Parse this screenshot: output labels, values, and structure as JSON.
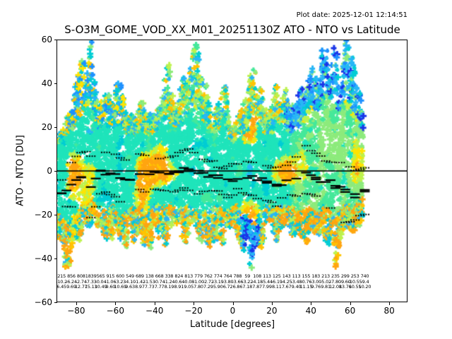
{
  "header": {
    "title": "S-O3M_GOME_VOD_XX_M01_20251130Z ATO - NTO vs Latitude",
    "plot_date": "Plot date: 2025-12-01 12:14:51"
  },
  "chart_data": {
    "type": "scatter",
    "marker": "+",
    "title": "S-O3M_GOME_VOD_XX_M01_20251130Z ATO - NTO vs Latitude",
    "xlabel": "Latitude [degrees]",
    "ylabel": "ATO - NTO [DU]",
    "xlim": [
      -90,
      89.5
    ],
    "ylim": [
      -60,
      60
    ],
    "grid": false,
    "zero_line_y": 0,
    "xticks": [
      {
        "value": -80,
        "label": "−80"
      },
      {
        "value": -60,
        "label": "−60"
      },
      {
        "value": -40,
        "label": "−40"
      },
      {
        "value": -20,
        "label": "−20"
      },
      {
        "value": 0,
        "label": "0"
      },
      {
        "value": 20,
        "label": "20"
      },
      {
        "value": 40,
        "label": "40"
      },
      {
        "value": 60,
        "label": "60"
      },
      {
        "value": 80,
        "label": "80"
      }
    ],
    "yticks": [
      {
        "value": 60,
        "label": "60"
      },
      {
        "value": 40,
        "label": "40"
      },
      {
        "value": 20,
        "label": "20"
      },
      {
        "value": 0,
        "label": "0"
      },
      {
        "value": -20,
        "label": "−20"
      },
      {
        "value": -40,
        "label": "−40"
      },
      {
        "value": -60,
        "label": "−60"
      }
    ],
    "lat_range_of_data": [
      -89.5,
      66.5
    ],
    "palette": [
      "#1a35e8",
      "#1e90ff",
      "#29b6f6",
      "#00cdd4",
      "#1fe4bb",
      "#45e89a",
      "#8deb7c",
      "#bdf24d",
      "#ffe400",
      "#ffc400",
      "#ffa510"
    ],
    "overlay_color": "#000000",
    "envelope": {
      "lat": [
        -89.5,
        -86,
        -83,
        -80,
        -77,
        -73,
        -71,
        -68,
        -65,
        -62,
        -57,
        -53,
        -49,
        -46,
        -43,
        -40,
        -37,
        -34,
        -31,
        -28,
        -25,
        -22,
        -19,
        -16,
        -13,
        -10,
        -7,
        -4,
        -1,
        2,
        5,
        8,
        11,
        14,
        17,
        20,
        23,
        26,
        29,
        32,
        35,
        38,
        41,
        44,
        47,
        50,
        52,
        55,
        58,
        61,
        64,
        66.5
      ],
      "upper": [
        18,
        26,
        30,
        36,
        44,
        57,
        46,
        32,
        34,
        30,
        36,
        26,
        29,
        31,
        26,
        28,
        34,
        45,
        34,
        33,
        38,
        43,
        50,
        44,
        33,
        28,
        31,
        41,
        24,
        22,
        26,
        31,
        42,
        36,
        29,
        28,
        38,
        36,
        30,
        29,
        36,
        46,
        50,
        42,
        56,
        58,
        50,
        46,
        55,
        48,
        42,
        30
      ],
      "lower": [
        -25,
        -38,
        -39,
        -30,
        -26,
        -25,
        -22,
        -28,
        -30,
        -25,
        -35,
        -28,
        -25,
        -28,
        -33,
        -25,
        -25,
        -28,
        -25,
        -30,
        -28,
        -25,
        -29,
        -33,
        -30,
        -28,
        -25,
        -31,
        -28,
        -25,
        -30,
        -34,
        -41,
        -30,
        -25,
        -25,
        -28,
        -25,
        -25,
        -28,
        -30,
        -28,
        -28,
        -30,
        -25,
        -30,
        -37,
        -30,
        -25,
        -28,
        -25,
        -20
      ]
    },
    "bin_stats": {
      "bin_width_deg": 5,
      "first_center": -87.5,
      "counts": [
        215,
        856,
        808,
        1839,
        565,
        915,
        600,
        549,
        689,
        138,
        668,
        338,
        824,
        813,
        779,
        762,
        774,
        764,
        788,
        59,
        108,
        113,
        125,
        143,
        113,
        155,
        183,
        213,
        235,
        299,
        253,
        740
      ],
      "means": [
        "-10.2",
        "-6.24",
        "-2.74",
        "-7.33",
        "-0.04",
        "-1.06",
        "-3.23",
        "-4.10",
        "-1.42",
        "-1.53",
        "-0.74",
        "-1.24",
        "-0.64",
        "-0.08",
        "-1.00",
        "-2.72",
        "-3.19",
        "-3.80",
        "-3.66",
        "-3.22",
        "-4.18",
        "-5.44",
        "-6.19",
        "-4.25",
        "-3.48",
        "-0.76",
        "-3.00",
        "-5.02",
        "-7.80",
        "-9.60",
        "-10.55",
        "-9.4"
      ],
      "stds": [
        "6.45",
        "9.69",
        "12.77",
        "15.13",
        "10.49",
        "9.60",
        "10.69",
        "9.63",
        "8.97",
        "7.73",
        "7.77",
        "8.19",
        "8.91",
        "9.05",
        "7.80",
        "7.29",
        "5.90",
        "6.72",
        "6.86",
        "7.18",
        "7.87",
        "7.99",
        "8.11",
        "7.67",
        "9.40",
        "11.15",
        "9.76",
        "9.81",
        "12.08",
        "13.76",
        "10.55",
        "10.20"
      ]
    }
  }
}
